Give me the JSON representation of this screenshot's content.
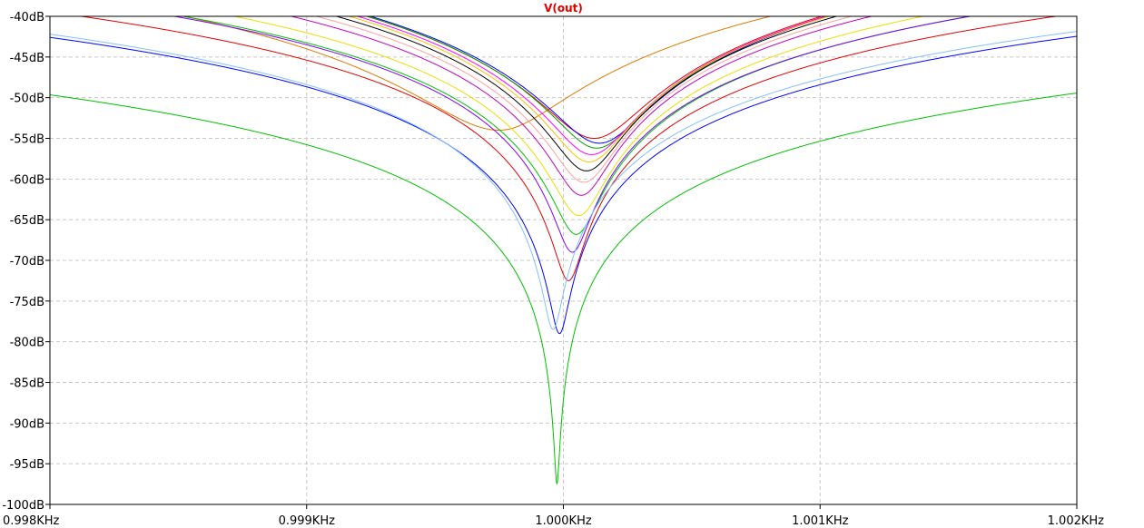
{
  "chart_data": {
    "type": "line",
    "title": "V(out)",
    "xlabel": "",
    "ylabel": "",
    "xlim": [
      998,
      1002
    ],
    "ylim": [
      -100,
      -40
    ],
    "x_ticks": [
      998,
      999,
      1000,
      1001,
      1002
    ],
    "x_tick_labels": [
      "0.998KHz",
      "0.999KHz",
      "1.000KHz",
      "1.001KHz",
      "1.002KHz"
    ],
    "y_ticks": [
      -40,
      -45,
      -50,
      -55,
      -60,
      -65,
      -70,
      -75,
      -80,
      -85,
      -90,
      -95,
      -100
    ],
    "y_tick_labels": [
      "-40dB",
      "-45dB",
      "-50dB",
      "-55dB",
      "-60dB",
      "-65dB",
      "-70dB",
      "-75dB",
      "-80dB",
      "-85dB",
      "-90dB",
      "-95dB",
      "-100dB"
    ],
    "grid": true,
    "grid_style": "dashed",
    "series": [
      {
        "color": "#e07800",
        "notch_freq": 999.75,
        "notch_depth": -54.0,
        "width": 0.25,
        "right_scale": 0.86
      },
      {
        "color": "#e00000",
        "notch_freq": 1000.12,
        "notch_depth": -55.0,
        "width": 0.16,
        "right_scale": 1.0
      },
      {
        "color": "#0000ff",
        "notch_freq": 1000.14,
        "notch_depth": -55.6,
        "width": 0.15,
        "right_scale": 1.0
      },
      {
        "color": "#00a000",
        "notch_freq": 1000.13,
        "notch_depth": -56.2,
        "width": 0.14,
        "right_scale": 1.0
      },
      {
        "color": "#ff00ff",
        "notch_freq": 1000.11,
        "notch_depth": -57.0,
        "width": 0.13,
        "right_scale": 1.0
      },
      {
        "color": "#ffc000",
        "notch_freq": 1000.1,
        "notch_depth": -57.9,
        "width": 0.12,
        "right_scale": 1.0
      },
      {
        "color": "#000000",
        "notch_freq": 1000.09,
        "notch_depth": -59.0,
        "width": 0.11,
        "right_scale": 1.0
      },
      {
        "color": "#ffa0a0",
        "notch_freq": 1000.08,
        "notch_depth": -60.4,
        "width": 0.1,
        "right_scale": 1.0
      },
      {
        "color": "#c000c0",
        "notch_freq": 1000.07,
        "notch_depth": -62.0,
        "width": 0.09,
        "right_scale": 1.0
      },
      {
        "color": "#e8e000",
        "notch_freq": 1000.06,
        "notch_depth": -64.5,
        "width": 0.08,
        "right_scale": 1.0
      },
      {
        "color": "#00c000",
        "notch_freq": 1000.05,
        "notch_depth": -66.8,
        "width": 0.07,
        "right_scale": 1.0
      },
      {
        "color": "#8000ff",
        "notch_freq": 1000.035,
        "notch_depth": -69.0,
        "width": 0.055,
        "right_scale": 1.0
      },
      {
        "color": "#e00000",
        "notch_freq": 1000.02,
        "notch_depth": -72.5,
        "width": 0.045,
        "right_scale": 1.0
      },
      {
        "color": "#0000ff",
        "notch_freq": 999.985,
        "notch_depth": -79.0,
        "width": 0.03,
        "right_scale": 1.0
      },
      {
        "color": "#00c000",
        "notch_freq": 999.975,
        "notch_depth": -97.5,
        "width": 0.008,
        "right_scale": 1.0
      },
      {
        "color": "#80c0ff",
        "notch_freq": 999.96,
        "notch_depth": -78.5,
        "width": 0.03,
        "right_scale": 1.0
      }
    ]
  }
}
